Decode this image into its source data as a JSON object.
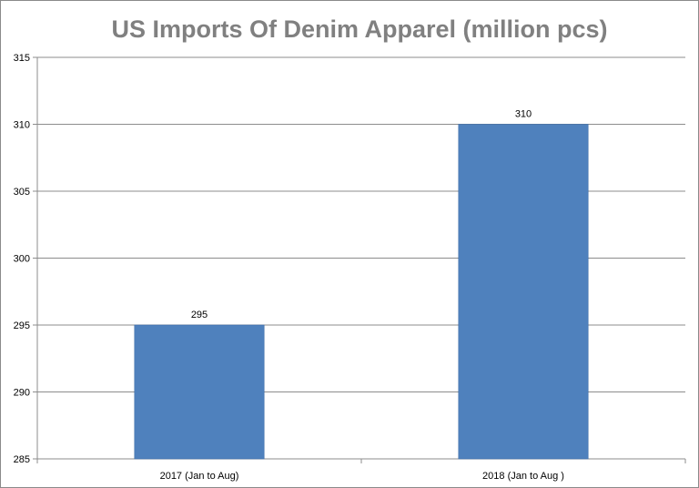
{
  "chart_data": {
    "type": "bar",
    "title": "US Imports Of Denim Apparel  (million pcs)",
    "xlabel": "",
    "ylabel": "",
    "categories": [
      "2017 (Jan to Aug)",
      "2018 (Jan to Aug )"
    ],
    "values": [
      295,
      310
    ],
    "data_labels": [
      "295",
      "310"
    ],
    "ylim": [
      285,
      315
    ],
    "yticks": [
      285,
      290,
      295,
      300,
      305,
      310,
      315
    ],
    "grid": true,
    "legend": "none",
    "bar_color": "#4f81bd"
  }
}
